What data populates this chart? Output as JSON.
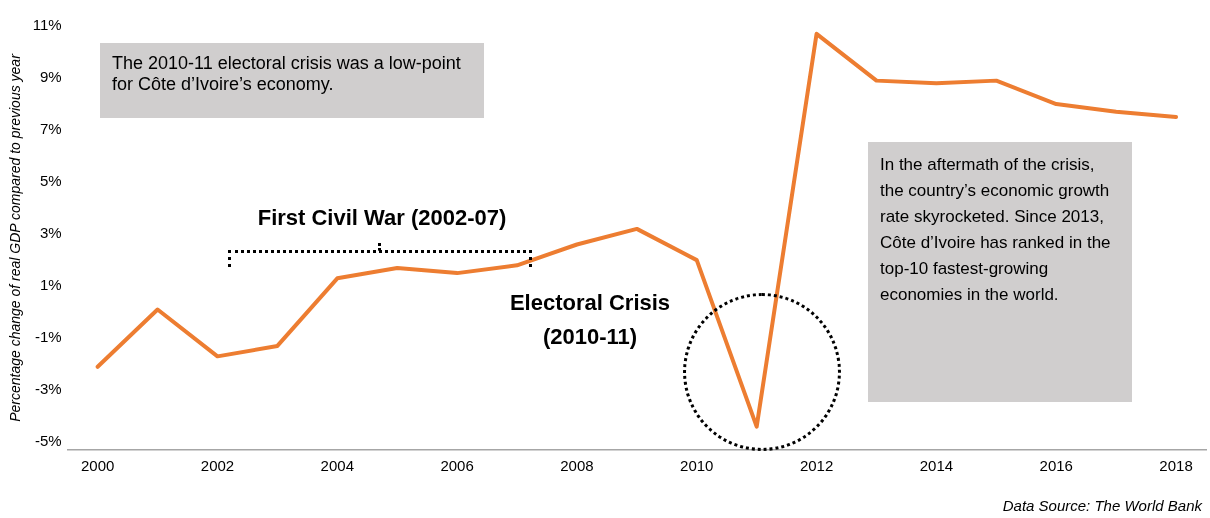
{
  "chart_data": {
    "type": "line",
    "ylabel": "Percentage change of real GDP compared to previous year",
    "x": [
      2000,
      2001,
      2002,
      2003,
      2004,
      2005,
      2006,
      2007,
      2008,
      2009,
      2010,
      2011,
      2012,
      2013,
      2014,
      2015,
      2016,
      2017,
      2018
    ],
    "series": [
      {
        "color": "#ed7d31",
        "values": [
          -2.1,
          0.1,
          -1.7,
          -1.3,
          1.3,
          1.7,
          1.5,
          1.8,
          2.6,
          3.2,
          2.0,
          -4.4,
          10.7,
          8.9,
          8.8,
          8.9,
          8.0,
          7.7,
          7.5
        ]
      }
    ],
    "xlim": [
      1999.5,
      2018.5
    ],
    "xticks": [
      2000,
      2002,
      2004,
      2006,
      2008,
      2010,
      2012,
      2014,
      2016,
      2018
    ],
    "ylim": [
      -5.3,
      11
    ],
    "yticks": [
      {
        "value": -5,
        "label": "-5%"
      },
      {
        "value": -3,
        "label": "-3%"
      },
      {
        "value": -1,
        "label": "-1%"
      },
      {
        "value": 1,
        "label": "1%"
      },
      {
        "value": 3,
        "label": "3%"
      },
      {
        "value": 5,
        "label": "5%"
      },
      {
        "value": 7,
        "label": "7%"
      },
      {
        "value": 9,
        "label": "9%"
      },
      {
        "value": 11,
        "label": "11%"
      }
    ],
    "marker": "none",
    "line_style": "solid",
    "annotations": [
      "The 2010-11 electoral crisis was a low-point for Côte d’Ivoire’s economy.",
      "First Civil War (2002-07)",
      "Electoral Crisis (2010-11)",
      "In the aftermath of the crisis, the country’s economic growth rate skyrocketed. Since 2013, Côte d’Ivoire has ranked in the top-10 fastest-growing economies in the world.",
      "Data Source: The World Bank"
    ]
  }
}
